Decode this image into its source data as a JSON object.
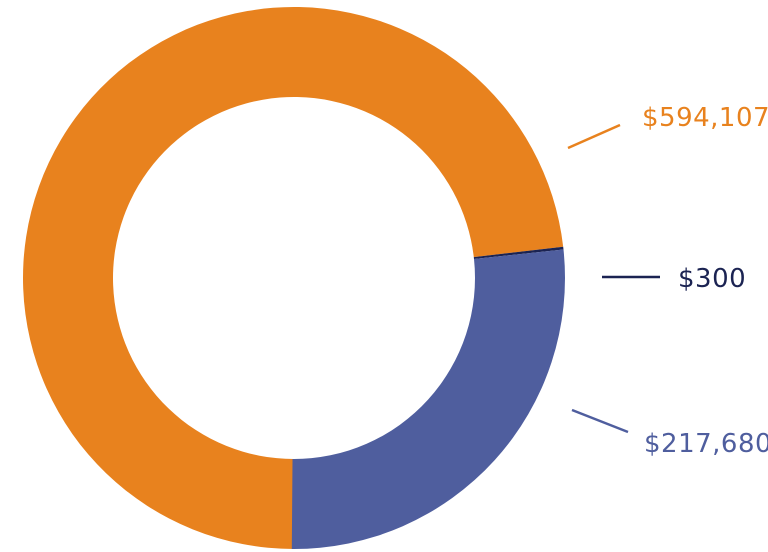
{
  "chart_data": {
    "type": "donut",
    "title": "",
    "slices": [
      {
        "value": 594107,
        "label": "$594,107",
        "color": "#E8821E"
      },
      {
        "value": 300,
        "label": "$300",
        "color": "#1B2352"
      },
      {
        "value": 217680,
        "label": "$217,680",
        "color": "#4F5E9E"
      }
    ],
    "legend": "none"
  }
}
